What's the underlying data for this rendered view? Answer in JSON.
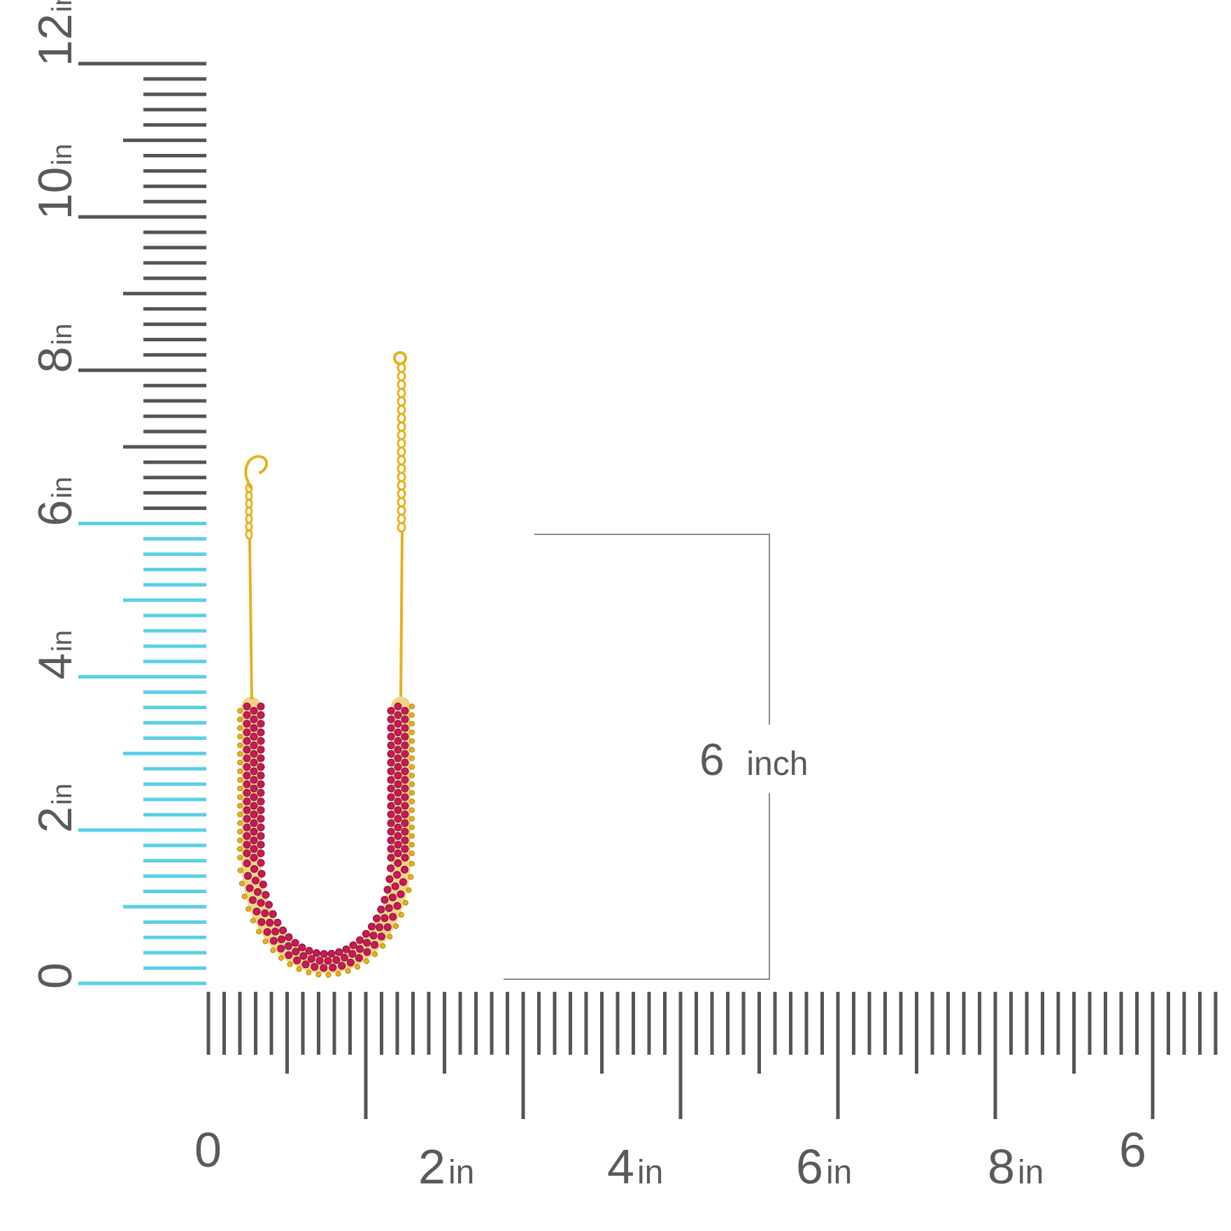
{
  "image": {
    "subject": "ruby-gold-necklace",
    "colors": {
      "ruler_tick": "#555555",
      "ruler_highlight": "#5bcfe8",
      "gold": "#e6b021",
      "gold_dark": "#b8860b",
      "ruby": "#c8195a",
      "ruby_dark": "#8c0f3e",
      "dimension_line": "#8a8a8a",
      "label_text": "#5a5a5a"
    }
  },
  "vertical_ruler": {
    "labels": [
      {
        "value": "0",
        "unit": ""
      },
      {
        "value": "2",
        "unit": "in"
      },
      {
        "value": "4",
        "unit": "in"
      },
      {
        "value": "6",
        "unit": "in"
      },
      {
        "value": "8",
        "unit": "in"
      },
      {
        "value": "10",
        "unit": "in"
      },
      {
        "value": "12",
        "unit": "in"
      }
    ],
    "highlighted_length_in": 6
  },
  "horizontal_ruler": {
    "labels": [
      {
        "value": "0",
        "unit": ""
      },
      {
        "value": "2",
        "unit": "in"
      },
      {
        "value": "4",
        "unit": "in"
      },
      {
        "value": "6",
        "unit": "in"
      },
      {
        "value": "8",
        "unit": "in"
      },
      {
        "value": "6",
        "unit": ""
      }
    ]
  },
  "dimension": {
    "value": "6",
    "unit": "inch"
  }
}
